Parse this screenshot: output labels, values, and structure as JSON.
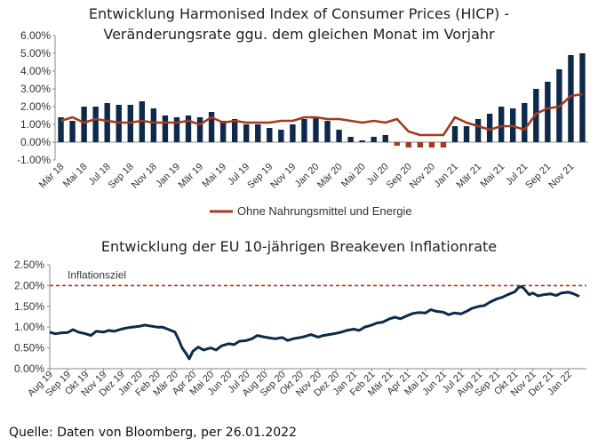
{
  "chart_data": [
    {
      "type": "bar",
      "title": "Entwicklung Harmonised Index of Consumer Prices (HICP) -",
      "subtitle": "Veränderungsrate ggu. dem gleichen Monat im Vorjahr",
      "ylim": [
        -1.0,
        6.0
      ],
      "yticks": [
        "-1.00%",
        "0.00%",
        "1.00%",
        "2.00%",
        "3.00%",
        "4.00%",
        "5.00%",
        "6.00%"
      ],
      "ytick_values": [
        -1,
        0,
        1,
        2,
        3,
        4,
        5,
        6
      ],
      "xtick_labels": [
        "Mär 18",
        "Mai 18",
        "Jul 18",
        "Sep 18",
        "Nov 18",
        "Jan 19",
        "Mär 19",
        "Mai 19",
        "Jul 19",
        "Sep 19",
        "Nov 19",
        "Jan 20",
        "Mär 20",
        "Mai 20",
        "Jul 20",
        "Sep 20",
        "Nov 20",
        "Jan 21",
        "Mär 21",
        "Mai 21",
        "Jul 21",
        "Sep 21",
        "Nov 21"
      ],
      "categories": [
        "Mär 18",
        "Apr 18",
        "Mai 18",
        "Jun 18",
        "Jul 18",
        "Aug 18",
        "Sep 18",
        "Okt 18",
        "Nov 18",
        "Dez 18",
        "Jan 19",
        "Feb 19",
        "Mär 19",
        "Apr 19",
        "Mai 19",
        "Jun 19",
        "Jul 19",
        "Aug 19",
        "Sep 19",
        "Okt 19",
        "Nov 19",
        "Dez 19",
        "Jan 20",
        "Feb 20",
        "Mär 20",
        "Apr 20",
        "Mai 20",
        "Jun 20",
        "Jul 20",
        "Aug 20",
        "Sep 20",
        "Okt 20",
        "Nov 20",
        "Dez 20",
        "Jan 21",
        "Feb 21",
        "Mär 21",
        "Apr 21",
        "Mai 21",
        "Jun 21",
        "Jul 21",
        "Aug 21",
        "Sep 21",
        "Okt 21",
        "Nov 21",
        "Dez 21"
      ],
      "series": [
        {
          "values": [
            1.4,
            1.2,
            2.0,
            2.0,
            2.2,
            2.1,
            2.1,
            2.3,
            1.9,
            1.5,
            1.4,
            1.5,
            1.4,
            1.7,
            1.2,
            1.3,
            1.0,
            1.0,
            0.8,
            0.7,
            1.0,
            1.3,
            1.4,
            1.2,
            0.7,
            0.3,
            0.1,
            0.3,
            0.4,
            -0.2,
            -0.3,
            -0.3,
            -0.3,
            -0.3,
            0.9,
            0.9,
            1.3,
            1.6,
            2.0,
            1.9,
            2.2,
            3.0,
            3.4,
            4.1,
            4.9,
            5.0
          ],
          "color": "#0d2a4b"
        },
        {
          "name": "Ohne Nahrungsmittel und Energie",
          "type": "line",
          "values": [
            1.2,
            1.4,
            1.1,
            1.3,
            1.2,
            1.1,
            1.1,
            1.2,
            1.1,
            1.1,
            1.1,
            1.2,
            1.0,
            1.4,
            1.1,
            1.2,
            1.1,
            1.1,
            1.1,
            1.2,
            1.2,
            1.4,
            1.4,
            1.3,
            1.3,
            1.2,
            1.1,
            1.2,
            1.1,
            1.3,
            0.6,
            0.4,
            0.4,
            0.4,
            1.4,
            1.1,
            0.9,
            0.7,
            0.9,
            0.9,
            0.7,
            1.6,
            1.9,
            2.0,
            2.6,
            2.7
          ],
          "color": "#a33a20"
        }
      ],
      "legend_position": "bottom-center"
    },
    {
      "type": "line",
      "title": "Entwicklung der EU 10-jährigen Breakeven Inflationrate",
      "ylim": [
        0.0,
        2.5
      ],
      "yticks": [
        "0.00%",
        "0.50%",
        "1.00%",
        "1.50%",
        "2.00%",
        "2.50%"
      ],
      "ytick_values": [
        0,
        0.5,
        1.0,
        1.5,
        2.0,
        2.5
      ],
      "x": [
        "Aug 19",
        "Sep 19",
        "Okt 19",
        "Nov 19",
        "Dez 19",
        "Jan 20",
        "Feb 20",
        "Mär 20",
        "Apr 20",
        "Mai 20",
        "Jun 20",
        "Jul 20",
        "Aug 20",
        "Sep 20",
        "Okt 20",
        "Nov 20",
        "Dez 20",
        "Jan 21",
        "Feb 21",
        "Mär 21",
        "Apr 21",
        "Mai 21",
        "Jun 21",
        "Jul 21",
        "Aug 21",
        "Sep 21",
        "Okt 21",
        "Nov 21",
        "Dez 21",
        "Jan 22"
      ],
      "series": [
        {
          "color": "#0d2a4b",
          "points": [
            [
              0,
              0.88
            ],
            [
              0.3,
              0.84
            ],
            [
              0.6,
              0.86
            ],
            [
              1,
              0.87
            ],
            [
              1.3,
              0.94
            ],
            [
              1.6,
              0.88
            ],
            [
              2,
              0.84
            ],
            [
              2.3,
              0.8
            ],
            [
              2.6,
              0.9
            ],
            [
              3,
              0.88
            ],
            [
              3.3,
              0.92
            ],
            [
              3.6,
              0.9
            ],
            [
              4,
              0.95
            ],
            [
              4.3,
              0.98
            ],
            [
              4.6,
              1.0
            ],
            [
              5,
              1.02
            ],
            [
              5.3,
              1.05
            ],
            [
              5.6,
              1.03
            ],
            [
              6,
              1.0
            ],
            [
              6.3,
              1.0
            ],
            [
              6.6,
              0.95
            ],
            [
              7,
              0.88
            ],
            [
              7.2,
              0.7
            ],
            [
              7.4,
              0.5
            ],
            [
              7.6,
              0.38
            ],
            [
              7.8,
              0.24
            ],
            [
              8,
              0.42
            ],
            [
              8.3,
              0.52
            ],
            [
              8.6,
              0.45
            ],
            [
              9,
              0.5
            ],
            [
              9.3,
              0.45
            ],
            [
              9.6,
              0.55
            ],
            [
              10,
              0.6
            ],
            [
              10.3,
              0.58
            ],
            [
              10.6,
              0.66
            ],
            [
              11,
              0.68
            ],
            [
              11.3,
              0.72
            ],
            [
              11.6,
              0.8
            ],
            [
              12,
              0.76
            ],
            [
              12.3,
              0.74
            ],
            [
              12.6,
              0.72
            ],
            [
              13,
              0.75
            ],
            [
              13.3,
              0.68
            ],
            [
              13.6,
              0.72
            ],
            [
              14,
              0.75
            ],
            [
              14.3,
              0.78
            ],
            [
              14.6,
              0.82
            ],
            [
              15,
              0.76
            ],
            [
              15.3,
              0.8
            ],
            [
              15.6,
              0.82
            ],
            [
              16,
              0.85
            ],
            [
              16.3,
              0.88
            ],
            [
              16.6,
              0.92
            ],
            [
              17,
              0.95
            ],
            [
              17.3,
              0.92
            ],
            [
              17.6,
              1.0
            ],
            [
              18,
              1.05
            ],
            [
              18.3,
              1.1
            ],
            [
              18.6,
              1.12
            ],
            [
              19,
              1.2
            ],
            [
              19.3,
              1.24
            ],
            [
              19.6,
              1.2
            ],
            [
              20,
              1.28
            ],
            [
              20.3,
              1.33
            ],
            [
              20.6,
              1.35
            ],
            [
              21,
              1.34
            ],
            [
              21.3,
              1.42
            ],
            [
              21.6,
              1.38
            ],
            [
              22,
              1.36
            ],
            [
              22.3,
              1.3
            ],
            [
              22.6,
              1.34
            ],
            [
              23,
              1.32
            ],
            [
              23.3,
              1.38
            ],
            [
              23.6,
              1.45
            ],
            [
              24,
              1.5
            ],
            [
              24.3,
              1.52
            ],
            [
              24.6,
              1.6
            ],
            [
              25,
              1.68
            ],
            [
              25.3,
              1.72
            ],
            [
              25.6,
              1.78
            ],
            [
              26,
              1.85
            ],
            [
              26.2,
              1.95
            ],
            [
              26.4,
              1.98
            ],
            [
              26.6,
              1.88
            ],
            [
              26.8,
              1.78
            ],
            [
              27,
              1.82
            ],
            [
              27.3,
              1.75
            ],
            [
              27.6,
              1.78
            ],
            [
              28,
              1.8
            ],
            [
              28.3,
              1.76
            ],
            [
              28.6,
              1.82
            ],
            [
              29,
              1.84
            ],
            [
              29.3,
              1.8
            ],
            [
              29.6,
              1.74
            ]
          ]
        }
      ],
      "reference_line": {
        "value": 2.0,
        "label": "Inflationsziel",
        "color": "#a33a20",
        "style": "dashed"
      }
    }
  ],
  "source": "Quelle: Daten von Bloomberg, per 26.01.2022"
}
